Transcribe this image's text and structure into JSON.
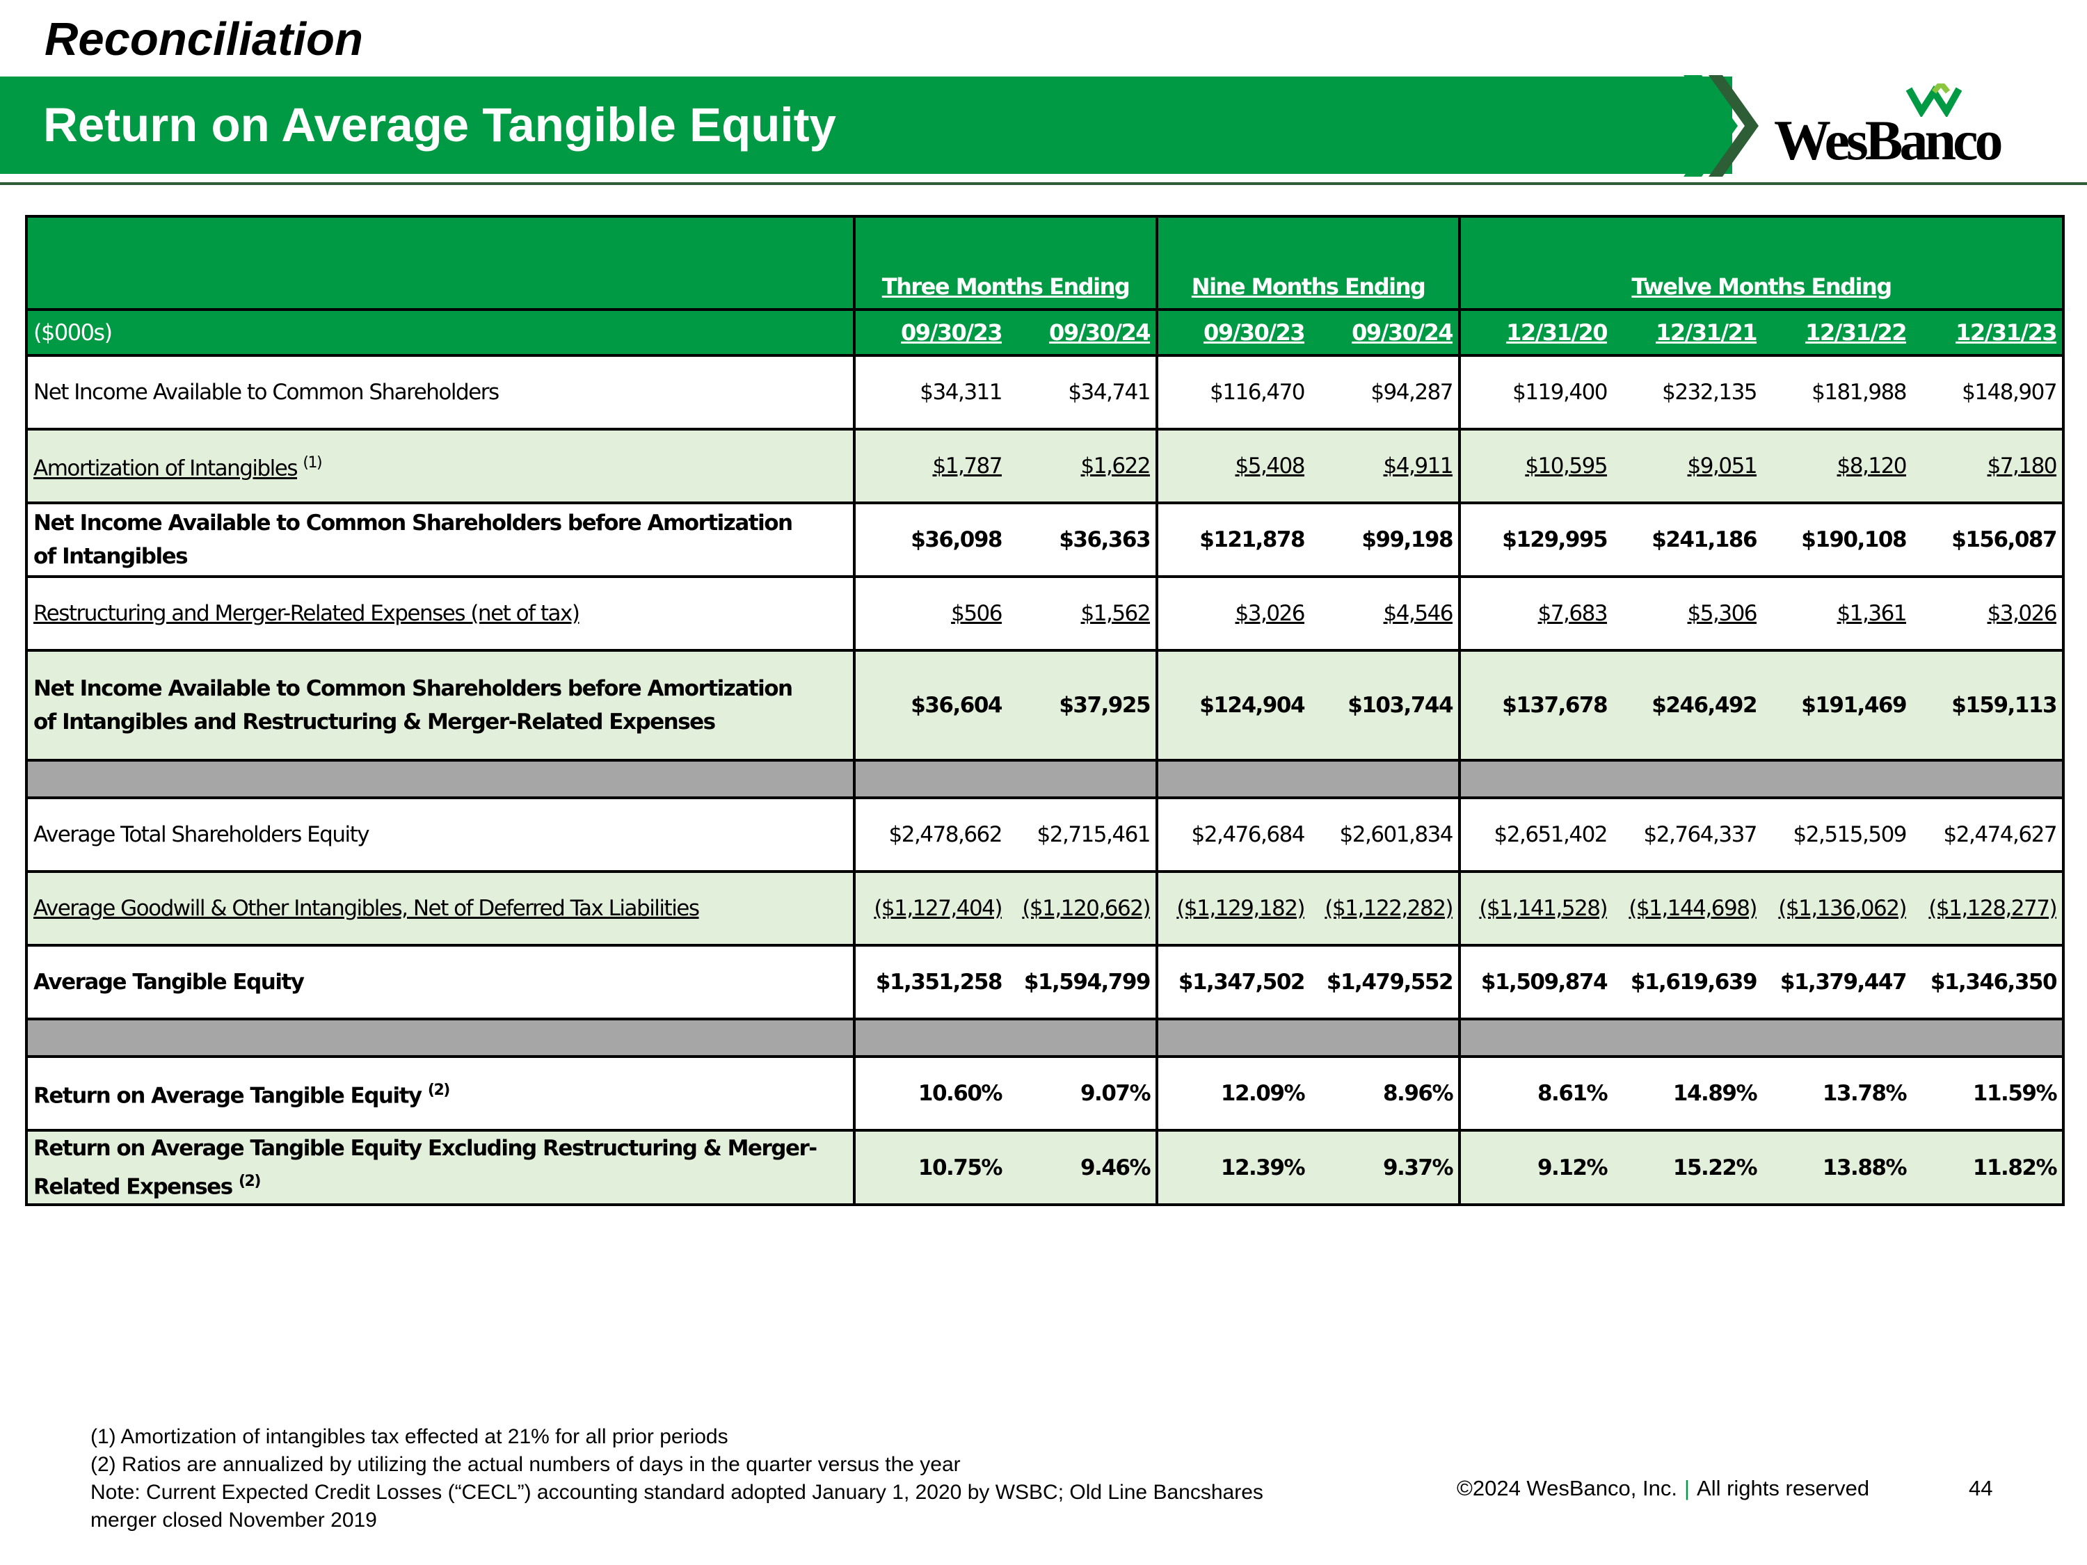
{
  "header": {
    "kicker": "Reconciliation",
    "title": "Return on Average Tangible Equity",
    "logo_text": "WesBanco",
    "brand_green": "#009a44",
    "light_green": "#e2efda",
    "spacer_gray": "#a6a6a6"
  },
  "table": {
    "unit_label": "($000s)",
    "groups": [
      {
        "label": "Three Months Ending"
      },
      {
        "label": "Nine Months Ending"
      },
      {
        "label": "Twelve Months Ending"
      }
    ],
    "dates": [
      "09/30/23",
      "09/30/24",
      "09/30/23",
      "09/30/24",
      "12/31/20",
      "12/31/21",
      "12/31/22",
      "12/31/23"
    ],
    "rows": [
      {
        "label": "Net Income Available to Common Shareholders",
        "sup": "",
        "values": [
          "$34,311",
          "$34,741",
          "$116,470",
          "$94,287",
          "$119,400",
          "$232,135",
          "$181,988",
          "$148,907"
        ]
      },
      {
        "label": "Amortization of Intangibles",
        "sup": "(1)",
        "values": [
          "$1,787",
          "$1,622",
          "$5,408",
          "$4,911",
          "$10,595",
          "$9,051",
          "$8,120",
          "$7,180"
        ]
      },
      {
        "label_line1": "Net Income Available to Common Shareholders before Amortization",
        "label_line2": "of Intangibles",
        "values": [
          "$36,098",
          "$36,363",
          "$121,878",
          "$99,198",
          "$129,995",
          "$241,186",
          "$190,108",
          "$156,087"
        ]
      },
      {
        "label": "Restructuring and Merger-Related Expenses (net of tax)",
        "sup": "",
        "values": [
          "$506",
          "$1,562",
          "$3,026",
          "$4,546",
          "$7,683",
          "$5,306",
          "$1,361",
          "$3,026"
        ]
      },
      {
        "label_line1": "Net Income Available to Common Shareholders before Amortization",
        "label_line2": "of Intangibles and Restructuring & Merger-Related Expenses",
        "values": [
          "$36,604",
          "$37,925",
          "$124,904",
          "$103,744",
          "$137,678",
          "$246,492",
          "$191,469",
          "$159,113"
        ]
      },
      {
        "label": "Average Total Shareholders Equity",
        "sup": "",
        "values": [
          "$2,478,662",
          "$2,715,461",
          "$2,476,684",
          "$2,601,834",
          "$2,651,402",
          "$2,764,337",
          "$2,515,509",
          "$2,474,627"
        ]
      },
      {
        "label": "Average Goodwill & Other Intangibles, Net of Deferred Tax Liabilities",
        "sup": "",
        "values": [
          "($1,127,404)",
          "($1,120,662)",
          "($1,129,182)",
          "($1,122,282)",
          "($1,141,528)",
          "($1,144,698)",
          "($1,136,062)",
          "($1,128,277)"
        ]
      },
      {
        "label": "Average Tangible Equity",
        "sup": "",
        "values": [
          "$1,351,258",
          "$1,594,799",
          "$1,347,502",
          "$1,479,552",
          "$1,509,874",
          "$1,619,639",
          "$1,379,447",
          "$1,346,350"
        ]
      },
      {
        "label": "Return on Average Tangible Equity",
        "sup": "(2)",
        "values": [
          "10.60%",
          "9.07%",
          "12.09%",
          "8.96%",
          "8.61%",
          "14.89%",
          "13.78%",
          "11.59%"
        ]
      },
      {
        "label_line1": "Return on Average Tangible Equity Excluding Restructuring & Merger-",
        "label_line2": "Related Expenses",
        "sup": "(2)",
        "values": [
          "10.75%",
          "9.46%",
          "12.39%",
          "9.37%",
          "9.12%",
          "15.22%",
          "13.88%",
          "11.82%"
        ]
      }
    ]
  },
  "footnotes": [
    "(1) Amortization of intangibles tax effected at 21% for all prior periods",
    "(2) Ratios are annualized by utilizing the actual numbers of days in the quarter versus the year",
    "Note: Current Expected Credit Losses (“CECL”) accounting standard adopted January 1, 2020 by WSBC; Old Line Bancshares",
    "merger closed November 2019"
  ],
  "footer": {
    "copyright": "©2024 WesBanco, Inc.",
    "separator": "|",
    "rights": "All rights reserved",
    "page_number": "44"
  }
}
